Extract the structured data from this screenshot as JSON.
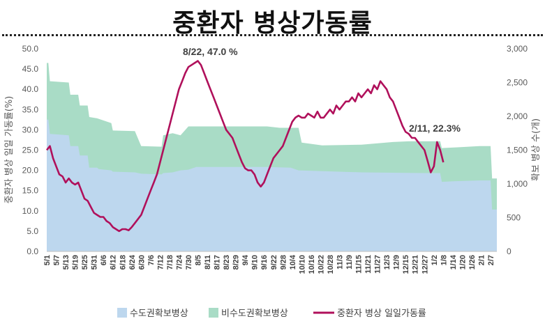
{
  "chart_data": {
    "type": "area+line",
    "title": "중환자 병상가동률",
    "ylabel_left": "중환자 병상 일일 가동률(%)",
    "ylabel_right": "확보 병상 수(개)",
    "left_axis": {
      "min": 0,
      "max": 50,
      "ticks": [
        "0.0",
        "5.0",
        "10.0",
        "15.0",
        "20.0",
        "25.0",
        "30.0",
        "35.0",
        "40.0",
        "45.0",
        "50.0"
      ]
    },
    "right_axis": {
      "min": 0,
      "max": 3000,
      "ticks": [
        "0",
        "500",
        "1,000",
        "1,500",
        "2,000",
        "2,500",
        "3,000"
      ]
    },
    "x_tick_labels": [
      "5/1",
      "5/7",
      "5/13",
      "5/19",
      "5/25",
      "5/31",
      "6/6",
      "6/12",
      "6/18",
      "6/24",
      "6/30",
      "7/6",
      "7/12",
      "7/18",
      "7/24",
      "7/30",
      "8/5",
      "8/11",
      "8/17",
      "8/23",
      "8/29",
      "9/4",
      "9/10",
      "9/16",
      "9/22",
      "9/28",
      "10/4",
      "10/10",
      "10/16",
      "10/22",
      "10/28",
      "11/3",
      "11/9",
      "11/15",
      "11/21",
      "11/27",
      "12/3",
      "12/9",
      "12/15",
      "12/21",
      "12/27",
      "1/2",
      "1/8",
      "1/14",
      "1/20",
      "1/26",
      "2/1",
      "2/7"
    ],
    "x_range_days": [
      0,
      286
    ],
    "series": [
      {
        "name": "수도권확보병상",
        "type": "stacked-area",
        "axis": "right",
        "color": "#bdd7ee",
        "points": [
          [
            0,
            1950
          ],
          [
            1,
            1950
          ],
          [
            2,
            1740
          ],
          [
            14,
            1720
          ],
          [
            15,
            1560
          ],
          [
            20,
            1560
          ],
          [
            21,
            1420
          ],
          [
            26,
            1420
          ],
          [
            27,
            1240
          ],
          [
            32,
            1240
          ],
          [
            33,
            1220
          ],
          [
            41,
            1200
          ],
          [
            42,
            1180
          ],
          [
            56,
            1170
          ],
          [
            60,
            1150
          ],
          [
            73,
            1140
          ],
          [
            74,
            1160
          ],
          [
            80,
            1170
          ],
          [
            85,
            1200
          ],
          [
            90,
            1210
          ],
          [
            95,
            1250
          ],
          [
            140,
            1250
          ],
          [
            155,
            1240
          ],
          [
            160,
            1200
          ],
          [
            200,
            1170
          ],
          [
            240,
            1160
          ],
          [
            250,
            1160
          ],
          [
            251,
            1030
          ],
          [
            260,
            1040
          ],
          [
            275,
            1050
          ],
          [
            280,
            1050
          ],
          [
            282,
            1050
          ],
          [
            283,
            620
          ],
          [
            286,
            620
          ]
        ]
      },
      {
        "name": "비수도권확보병상",
        "type": "stacked-area",
        "axis": "right",
        "color": "#a9dcc6",
        "points": [
          [
            0,
            2790
          ],
          [
            1,
            2790
          ],
          [
            2,
            2520
          ],
          [
            14,
            2500
          ],
          [
            15,
            2320
          ],
          [
            20,
            2320
          ],
          [
            21,
            2160
          ],
          [
            26,
            2160
          ],
          [
            27,
            1990
          ],
          [
            32,
            1970
          ],
          [
            41,
            1900
          ],
          [
            42,
            1790
          ],
          [
            56,
            1780
          ],
          [
            60,
            1560
          ],
          [
            73,
            1550
          ],
          [
            74,
            1720
          ],
          [
            80,
            1750
          ],
          [
            85,
            1720
          ],
          [
            90,
            1850
          ],
          [
            100,
            1850
          ],
          [
            110,
            1850
          ],
          [
            140,
            1850
          ],
          [
            148,
            1830
          ],
          [
            160,
            1830
          ],
          [
            162,
            1610
          ],
          [
            175,
            1570
          ],
          [
            200,
            1580
          ],
          [
            220,
            1620
          ],
          [
            230,
            1630
          ],
          [
            250,
            1630
          ],
          [
            251,
            1530
          ],
          [
            260,
            1540
          ],
          [
            275,
            1560
          ],
          [
            282,
            1560
          ],
          [
            283,
            1080
          ],
          [
            286,
            1080
          ]
        ]
      },
      {
        "name": "중환자 병상 일일가동률",
        "type": "line",
        "axis": "left",
        "color": "#b0105b",
        "points": [
          [
            0,
            25
          ],
          [
            2,
            26
          ],
          [
            4,
            23
          ],
          [
            6,
            21
          ],
          [
            8,
            19
          ],
          [
            10,
            18.5
          ],
          [
            12,
            17
          ],
          [
            14,
            18
          ],
          [
            16,
            17
          ],
          [
            18,
            16.5
          ],
          [
            20,
            17
          ],
          [
            22,
            15
          ],
          [
            24,
            13
          ],
          [
            26,
            12.5
          ],
          [
            28,
            11
          ],
          [
            30,
            9.5
          ],
          [
            32,
            9
          ],
          [
            34,
            8.5
          ],
          [
            36,
            8.5
          ],
          [
            38,
            7.5
          ],
          [
            40,
            7
          ],
          [
            42,
            6
          ],
          [
            44,
            5.5
          ],
          [
            46,
            5
          ],
          [
            48,
            5.5
          ],
          [
            50,
            5.5
          ],
          [
            52,
            5.2
          ],
          [
            54,
            6
          ],
          [
            56,
            7
          ],
          [
            58,
            8
          ],
          [
            60,
            9
          ],
          [
            62,
            11
          ],
          [
            64,
            13
          ],
          [
            66,
            15
          ],
          [
            68,
            17
          ],
          [
            70,
            19
          ],
          [
            72,
            22
          ],
          [
            74,
            25
          ],
          [
            76,
            28
          ],
          [
            78,
            31
          ],
          [
            80,
            34
          ],
          [
            82,
            37
          ],
          [
            84,
            40
          ],
          [
            86,
            42
          ],
          [
            88,
            44
          ],
          [
            90,
            45.5
          ],
          [
            92,
            46
          ],
          [
            94,
            46.5
          ],
          [
            96,
            47
          ],
          [
            98,
            46
          ],
          [
            100,
            44
          ],
          [
            102,
            42
          ],
          [
            104,
            40
          ],
          [
            106,
            38
          ],
          [
            108,
            36
          ],
          [
            110,
            34
          ],
          [
            112,
            32
          ],
          [
            114,
            30
          ],
          [
            116,
            29
          ],
          [
            118,
            28
          ],
          [
            120,
            26
          ],
          [
            122,
            24
          ],
          [
            124,
            22
          ],
          [
            126,
            20.5
          ],
          [
            128,
            20
          ],
          [
            130,
            20
          ],
          [
            132,
            19
          ],
          [
            134,
            17
          ],
          [
            136,
            16
          ],
          [
            138,
            17
          ],
          [
            140,
            19
          ],
          [
            142,
            21
          ],
          [
            144,
            23
          ],
          [
            146,
            24
          ],
          [
            148,
            25
          ],
          [
            150,
            26
          ],
          [
            152,
            28
          ],
          [
            154,
            30
          ],
          [
            156,
            32
          ],
          [
            158,
            33
          ],
          [
            160,
            33.5
          ],
          [
            162,
            33
          ],
          [
            164,
            33
          ],
          [
            166,
            34
          ],
          [
            168,
            33.5
          ],
          [
            170,
            33
          ],
          [
            172,
            34.5
          ],
          [
            174,
            33
          ],
          [
            176,
            33
          ],
          [
            178,
            34
          ],
          [
            180,
            35
          ],
          [
            182,
            34
          ],
          [
            184,
            36
          ],
          [
            186,
            35
          ],
          [
            188,
            36
          ],
          [
            190,
            37
          ],
          [
            192,
            37
          ],
          [
            194,
            38
          ],
          [
            196,
            37
          ],
          [
            198,
            39
          ],
          [
            200,
            38
          ],
          [
            202,
            39
          ],
          [
            204,
            40
          ],
          [
            206,
            39
          ],
          [
            208,
            41
          ],
          [
            210,
            40
          ],
          [
            212,
            42
          ],
          [
            214,
            41
          ],
          [
            216,
            40
          ],
          [
            218,
            38
          ],
          [
            220,
            37
          ],
          [
            222,
            35
          ],
          [
            224,
            33
          ],
          [
            226,
            31
          ],
          [
            228,
            29.5
          ],
          [
            230,
            29
          ],
          [
            232,
            28
          ],
          [
            234,
            28
          ],
          [
            236,
            27
          ],
          [
            238,
            26
          ],
          [
            240,
            25
          ],
          [
            242,
            22.3
          ],
          [
            244,
            19.5
          ],
          [
            246,
            21
          ],
          [
            248,
            27
          ],
          [
            250,
            25
          ],
          [
            252,
            22
          ]
        ]
      }
    ],
    "annotations": [
      "8/22, 47.0 %",
      "2/11, 22.3%"
    ],
    "legend": [
      "수도권확보병상",
      "비수도권확보병상",
      "중환자 병상 일일가동률"
    ],
    "legend_position": "bottom"
  }
}
